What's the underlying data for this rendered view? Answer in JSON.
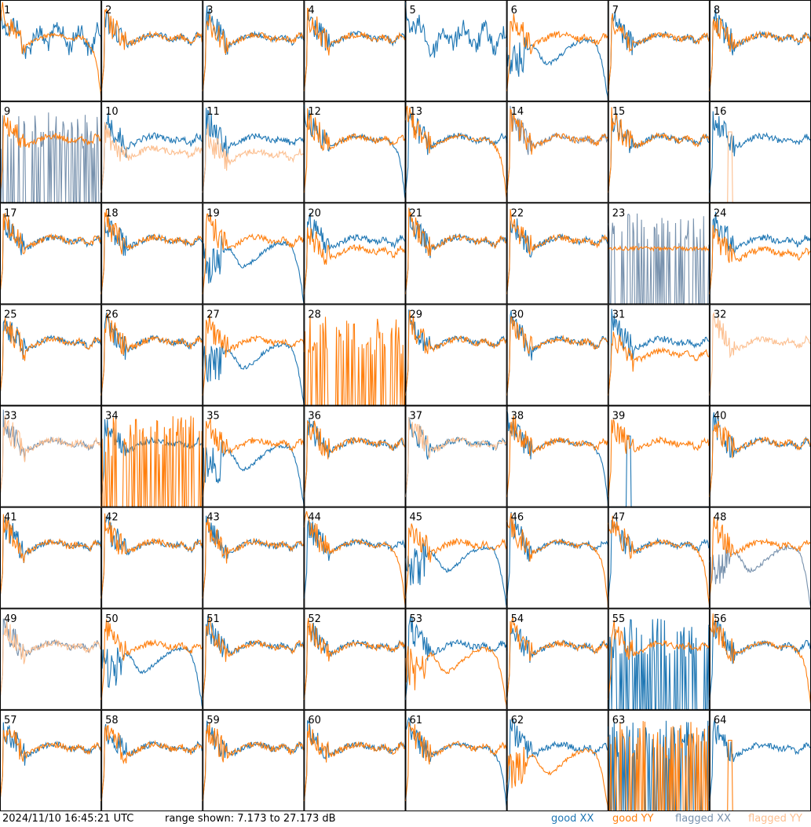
{
  "footer": {
    "timestamp": "2024/11/10 16:45:21 UTC",
    "range_text": "range shown: 7.173 to 27.173 dB"
  },
  "legend": {
    "good_xx": "good XX",
    "good_yy": "good YY",
    "flagged_xx": "flagged XX",
    "flagged_yy": "flagged YY"
  },
  "colors": {
    "good_xx": "#1f77b4",
    "good_yy": "#ff7f0e",
    "flagged_xx": "#7791ad",
    "flagged_yy": "#fcbf90",
    "grid": "#000000"
  },
  "chart_data": {
    "type": "line",
    "layout": "8x8 small multiples",
    "y_range_db": [
      7.173,
      27.173
    ],
    "panels": [
      {
        "label": "1",
        "xx": "bumpy",
        "yy": "rolloff",
        "yy_level": 0.52
      },
      {
        "label": "2",
        "xx": "normal",
        "yy": "normal"
      },
      {
        "label": "3",
        "xx": "normal",
        "yy": "normal"
      },
      {
        "label": "4",
        "xx": "normal",
        "yy": "normal"
      },
      {
        "label": "5",
        "xx": "bumpy",
        "yy": "none"
      },
      {
        "label": "6",
        "xx": "wave",
        "yy": "normal"
      },
      {
        "label": "7",
        "xx": "normal",
        "yy": "normal"
      },
      {
        "label": "8",
        "xx": "normal",
        "yy": "normal"
      },
      {
        "label": "9",
        "xx": "spikes",
        "yy": "normal",
        "xx_state": "flagged"
      },
      {
        "label": "10",
        "xx": "normal",
        "yy": "normal",
        "yy_state": "flagged",
        "yy_offset": 0.12
      },
      {
        "label": "11",
        "xx": "normal",
        "yy": "normal",
        "yy_state": "flagged",
        "yy_offset": 0.15
      },
      {
        "label": "12",
        "xx": "rolloff",
        "yy": "normal"
      },
      {
        "label": "13",
        "xx": "normal",
        "yy": "rolloff"
      },
      {
        "label": "14",
        "xx": "normal",
        "yy": "normal",
        "xx_state": "flagged"
      },
      {
        "label": "15",
        "xx": "normal",
        "yy": "normal"
      },
      {
        "label": "16",
        "xx": "normal",
        "yy": "spike",
        "yy_state": "flagged"
      },
      {
        "label": "17",
        "xx": "normal",
        "yy": "normal"
      },
      {
        "label": "18",
        "xx": "normal",
        "yy": "normal"
      },
      {
        "label": "19",
        "xx": "wave",
        "yy": "normal"
      },
      {
        "label": "20",
        "xx": "normal",
        "yy": "normal",
        "yy_offset": 0.1
      },
      {
        "label": "21",
        "xx": "normal",
        "yy": "normal"
      },
      {
        "label": "22",
        "xx": "normal",
        "yy": "normal"
      },
      {
        "label": "23",
        "xx": "spikes",
        "yy": "flat",
        "xx_state": "flagged"
      },
      {
        "label": "24",
        "xx": "normal",
        "yy": "normal",
        "yy_offset": 0.12
      },
      {
        "label": "25",
        "xx": "normal",
        "yy": "normal"
      },
      {
        "label": "26",
        "xx": "normal",
        "yy": "normal"
      },
      {
        "label": "27",
        "xx": "wave",
        "yy": "normal"
      },
      {
        "label": "28",
        "xx": "none",
        "yy": "spikes"
      },
      {
        "label": "29",
        "xx": "normal",
        "yy": "normal"
      },
      {
        "label": "30",
        "xx": "normal",
        "yy": "normal"
      },
      {
        "label": "31",
        "xx": "normal",
        "yy": "normal",
        "yy_offset": 0.12
      },
      {
        "label": "32",
        "xx": "none",
        "yy": "normal",
        "yy_state": "flagged"
      },
      {
        "label": "33",
        "xx": "normal",
        "yy": "normal",
        "xx_state": "flagged",
        "yy_state": "flagged"
      },
      {
        "label": "34",
        "xx": "normal",
        "yy": "spikes"
      },
      {
        "label": "35",
        "xx": "wave",
        "yy": "normal"
      },
      {
        "label": "36",
        "xx": "normal",
        "yy": "normal"
      },
      {
        "label": "37",
        "xx": "normal",
        "yy": "normal",
        "yy_state": "flagged"
      },
      {
        "label": "38",
        "xx": "rolloff",
        "yy": "normal"
      },
      {
        "label": "39",
        "xx": "spike",
        "yy": "normal"
      },
      {
        "label": "40",
        "xx": "normal",
        "yy": "normal"
      },
      {
        "label": "41",
        "xx": "normal",
        "yy": "normal"
      },
      {
        "label": "42",
        "xx": "normal",
        "yy": "normal"
      },
      {
        "label": "43",
        "xx": "normal",
        "yy": "normal"
      },
      {
        "label": "44",
        "xx": "normal",
        "yy": "rolloff"
      },
      {
        "label": "45",
        "xx": "wave",
        "yy": "normal"
      },
      {
        "label": "46",
        "xx": "normal",
        "yy": "rolloff"
      },
      {
        "label": "47",
        "xx": "normal",
        "yy": "rolloff"
      },
      {
        "label": "48",
        "xx": "wave",
        "yy": "normal",
        "xx_state": "flagged"
      },
      {
        "label": "49",
        "xx": "normal",
        "yy": "normal",
        "xx_state": "flagged",
        "yy_state": "flagged"
      },
      {
        "label": "50",
        "xx": "wave",
        "yy": "normal"
      },
      {
        "label": "51",
        "xx": "normal",
        "yy": "normal"
      },
      {
        "label": "52",
        "xx": "normal",
        "yy": "normal"
      },
      {
        "label": "53",
        "xx": "normal",
        "yy": "wave"
      },
      {
        "label": "54",
        "xx": "normal",
        "yy": "normal"
      },
      {
        "label": "55",
        "xx": "spikes",
        "yy": "normal"
      },
      {
        "label": "56",
        "xx": "normal",
        "yy": "rolloff"
      },
      {
        "label": "57",
        "xx": "normal",
        "yy": "normal"
      },
      {
        "label": "58",
        "xx": "normal",
        "yy": "normal"
      },
      {
        "label": "59",
        "xx": "normal",
        "yy": "normal"
      },
      {
        "label": "60",
        "xx": "normal",
        "yy": "normal"
      },
      {
        "label": "61",
        "xx": "rolloff",
        "yy": "normal"
      },
      {
        "label": "62",
        "xx": "normal",
        "yy": "wave"
      },
      {
        "label": "63",
        "xx": "spikes",
        "yy": "spikes"
      },
      {
        "label": "64",
        "xx": "normal",
        "yy": "spike"
      }
    ]
  }
}
